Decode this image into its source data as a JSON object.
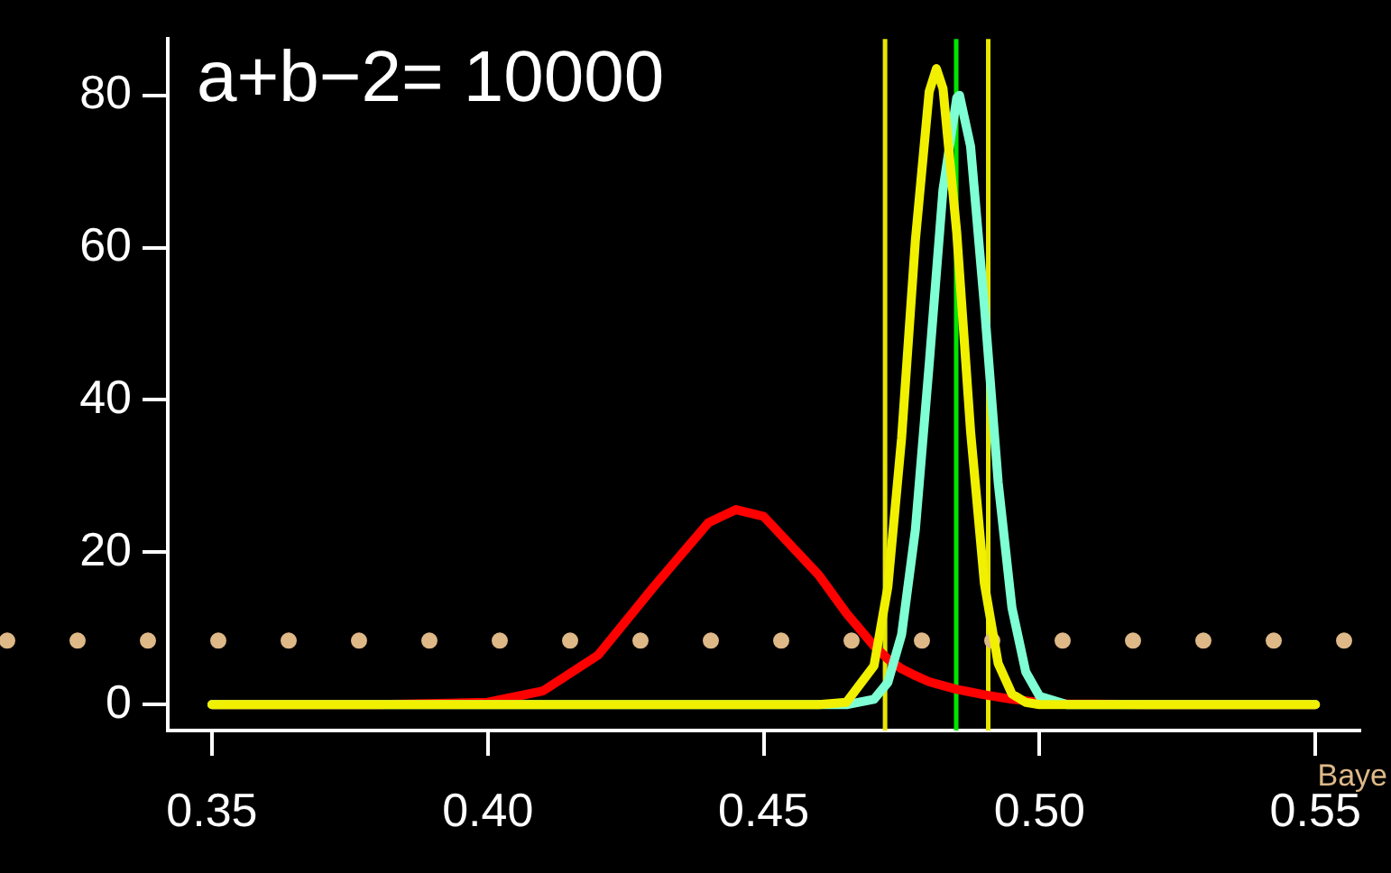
{
  "chart_data": {
    "type": "line",
    "title": "a+b−2= 10000",
    "xlim": [
      0.342,
      0.558
    ],
    "ylim": [
      -3.4,
      87.4
    ],
    "xticks": [
      0.35,
      {
        "value": 0.4,
        "label": "0.40"
      },
      0.45,
      {
        "value": 0.5,
        "label": "0.50"
      },
      0.55
    ],
    "yticks": [
      0,
      20,
      40,
      60,
      80
    ],
    "marker": "none",
    "line_style": "solid",
    "series": [
      {
        "color": "#ff0000",
        "x": [
          0.35,
          0.38,
          0.4,
          0.41,
          0.42,
          0.43,
          0.44,
          0.445,
          0.45,
          0.46,
          0.465,
          0.47,
          0.4725,
          0.475,
          0.4775,
          0.48,
          0.485,
          0.49,
          0.495,
          0.5,
          0.505,
          0.52,
          0.55
        ],
        "values": [
          0,
          0,
          0.3,
          1.8,
          6.5,
          15.4,
          23.9,
          25.6,
          24.7,
          17,
          12,
          7.7,
          6,
          4.7,
          3.8,
          3,
          2,
          1.3,
          0.7,
          0.3,
          0.1,
          0,
          0
        ]
      },
      {
        "color": "#7fffd4",
        "x": [
          0.35,
          0.44,
          0.465,
          0.47,
          0.4725,
          0.475,
          0.4775,
          0.48,
          0.4825,
          0.485,
          0.4855,
          0.4875,
          0.49,
          0.4925,
          0.495,
          0.4975,
          0.5,
          0.505,
          0.55
        ],
        "values": [
          0,
          0,
          0,
          0.7,
          2.9,
          9.2,
          23,
          44.7,
          67.6,
          79.7,
          80,
          73.3,
          52.4,
          29.2,
          12.7,
          4.3,
          1.1,
          0,
          0
        ]
      },
      {
        "color": "#f0f000",
        "x": [
          0.35,
          0.44,
          0.46,
          0.465,
          0.47,
          0.4725,
          0.475,
          0.4775,
          0.48,
          0.4813,
          0.4825,
          0.485,
          0.4875,
          0.49,
          0.4925,
          0.495,
          0.4975,
          0.5,
          0.55
        ],
        "values": [
          0,
          0,
          0,
          0.3,
          5.1,
          15.4,
          35,
          61,
          80.5,
          83.5,
          80.9,
          61.9,
          35.9,
          15.9,
          5.4,
          1.4,
          0.3,
          0,
          0
        ]
      }
    ],
    "ref_lines": [
      {
        "axis": "x",
        "value": 0.472,
        "color": "#e6e600"
      },
      {
        "axis": "x",
        "value": 0.4907,
        "color": "#e6e600"
      },
      {
        "axis": "x",
        "value": 0.4849,
        "color": "#00e600"
      },
      {
        "axis": "y",
        "value": 8.4,
        "color": "#deb887",
        "line_style": "dotted"
      }
    ],
    "annotations": [
      "Baye"
    ]
  }
}
